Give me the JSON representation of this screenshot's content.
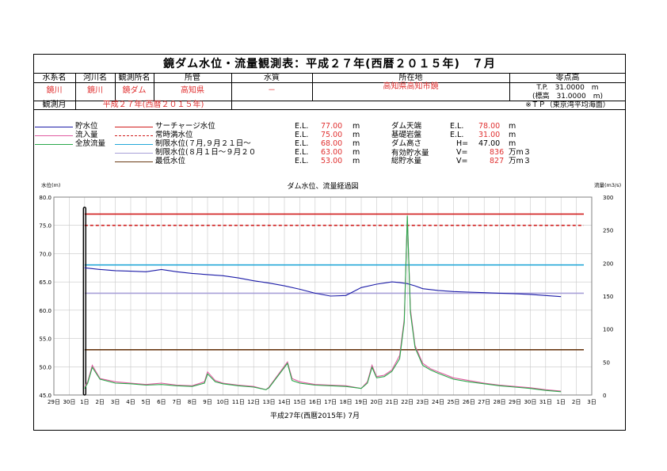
{
  "title": "鏡ダム水位・流量観測表：平成２７年(西暦２０１５年)　７月",
  "header": {
    "labels": [
      "水系名",
      "河川名",
      "観測所名",
      "所管",
      "水質",
      "所在地",
      "零点高"
    ],
    "values": [
      "鏡川",
      "鏡川",
      "鏡ダム",
      "高知県",
      "－",
      "高知県高知市鏡"
    ],
    "datum_1": "T.P.　31.0000　m",
    "datum_2": "(標高　31.0000　m)",
    "period_label": "観測月",
    "period_value": "平成２７年(西暦２０１５年)",
    "tp_note": "※ＴＰ（東京湾平均海面）"
  },
  "legend_left": [
    {
      "label": "貯水位",
      "color": "#1c1ca8"
    },
    {
      "label": "流入量",
      "color": "#e05aa0"
    },
    {
      "label": "全放流量",
      "color": "#2aa84a"
    }
  ],
  "levels": [
    {
      "label": "サーチャージ水位",
      "el": "E.L.",
      "value": "77.00",
      "unit": "m",
      "color": "#d01c1c",
      "dash": false
    },
    {
      "label": "常時満水位",
      "el": "E.L.",
      "value": "75.00",
      "unit": "m",
      "color": "#d01c1c",
      "dash": true
    },
    {
      "label": "制限水位(７月,９月２１日～",
      "el": "E.L.",
      "value": "68.00",
      "unit": "m",
      "color": "#24a8d8",
      "dash": false
    },
    {
      "label": "制限水位(８月１日～９月２０",
      "el": "E.L.",
      "value": "63.00",
      "unit": "m",
      "color": "#a8a0d8",
      "dash": false
    },
    {
      "label": "最低水位",
      "el": "E.L.",
      "value": "53.00",
      "unit": "m",
      "color": "#6a3a14",
      "dash": false
    }
  ],
  "specs": [
    {
      "label": "ダム天端",
      "el": "E.L.",
      "value": "78.00",
      "unit": "m"
    },
    {
      "label": "基礎岩盤",
      "el": "E.L.",
      "value": "31.00",
      "unit": "m"
    },
    {
      "label": "ダム高さ",
      "el": "H=",
      "value": "47.00",
      "unit": "m"
    },
    {
      "label": "有効貯水量",
      "el": "V=",
      "value": "836",
      "unit": "万m３"
    },
    {
      "label": "総貯水量",
      "el": "V=",
      "value": "827",
      "unit": "万m３"
    }
  ],
  "chart_data": {
    "type": "line",
    "title": "ダム水位、流量経過図",
    "ylabel_left": "水位(m)",
    "ylabel_right": "流量(m3/s)",
    "xlabel": "平成27年(西暦2015年) 7月",
    "ylim_left": [
      45.0,
      80.0
    ],
    "ylim_right": [
      0,
      300
    ],
    "yticks_left": [
      "45.0",
      "50.0",
      "55.0",
      "60.0",
      "65.0",
      "70.0",
      "75.0",
      "80.0"
    ],
    "yticks_right": [
      "0",
      "50",
      "100",
      "150",
      "200",
      "250",
      "300"
    ],
    "x_tick_labels": [
      "29日",
      "30日",
      "1日",
      "2日",
      "3日",
      "4日",
      "5日",
      "6日",
      "7日",
      "8日",
      "9日",
      "10日",
      "11日",
      "12日",
      "13日",
      "14日",
      "15日",
      "16日",
      "17日",
      "18日",
      "19日",
      "20日",
      "21日",
      "22日",
      "23日",
      "24日",
      "25日",
      "26日",
      "27日",
      "28日",
      "29日",
      "30日",
      "31日",
      "1日",
      "2日",
      "3日"
    ],
    "x_range_days": [
      -1,
      34
    ],
    "grid": true,
    "reference_lines": [
      {
        "name": "サーチャージ水位",
        "y": 77.0,
        "color": "#d01c1c",
        "dash": false
      },
      {
        "name": "常時満水位",
        "y": 75.0,
        "color": "#d01c1c",
        "dash": true
      },
      {
        "name": "制限水位(７月,９月２１日～",
        "y": 68.0,
        "color": "#24a8d8",
        "dash": false
      },
      {
        "name": "制限水位(８月１日～９月２０",
        "y": 63.0,
        "color": "#a8a0d8",
        "dash": false
      },
      {
        "name": "最低水位",
        "y": 53.0,
        "color": "#6a3a14",
        "dash": false
      }
    ],
    "series": [
      {
        "name": "貯水位",
        "axis": "left",
        "color": "#1c1ca8",
        "x": [
          1,
          2,
          3,
          4,
          5,
          6,
          7,
          8,
          9,
          10,
          11,
          12,
          13,
          14,
          15,
          16,
          17,
          18,
          19,
          20,
          21,
          21.5,
          22,
          22.5,
          23,
          24,
          25,
          26,
          27,
          28,
          29,
          30,
          31,
          32
        ],
        "y": [
          67.5,
          67.2,
          67.0,
          66.9,
          66.8,
          67.2,
          66.8,
          66.5,
          66.3,
          66.1,
          65.7,
          65.2,
          64.8,
          64.3,
          63.7,
          63.0,
          62.5,
          62.6,
          64.0,
          64.6,
          65.0,
          64.9,
          64.7,
          64.3,
          63.8,
          63.5,
          63.3,
          63.2,
          63.1,
          63.0,
          62.9,
          62.8,
          62.6,
          62.4
        ]
      },
      {
        "name": "流入量",
        "axis": "right",
        "color": "#e05aa0",
        "x": [
          1,
          1.2,
          1.5,
          2,
          3,
          4,
          5,
          6,
          7,
          8,
          8.8,
          9,
          9.5,
          10,
          11,
          12,
          12.8,
          13,
          14.2,
          14.5,
          15,
          16,
          17,
          18,
          19,
          19.4,
          19.7,
          20,
          20.5,
          21,
          21.5,
          21.8,
          22,
          22.2,
          22.5,
          23,
          23.5,
          24,
          25,
          26,
          27,
          28,
          29,
          30,
          31,
          32
        ],
        "y": [
          12,
          20,
          45,
          25,
          20,
          18,
          16,
          18,
          15,
          14,
          20,
          35,
          22,
          18,
          15,
          13,
          8,
          12,
          50,
          25,
          20,
          16,
          15,
          14,
          10,
          20,
          45,
          28,
          30,
          38,
          60,
          115,
          270,
          130,
          75,
          48,
          40,
          35,
          26,
          22,
          18,
          15,
          13,
          11,
          8,
          6
        ]
      },
      {
        "name": "全放流量",
        "axis": "right",
        "color": "#2aa84a",
        "x": [
          1,
          1.2,
          1.5,
          2,
          3,
          4,
          5,
          6,
          7,
          8,
          8.8,
          9,
          9.5,
          10,
          11,
          12,
          12.8,
          13,
          14.2,
          14.5,
          15,
          16,
          17,
          18,
          19,
          19.4,
          19.7,
          20,
          20.5,
          21,
          21.5,
          21.8,
          22,
          22.2,
          22.5,
          23,
          23.5,
          24,
          25,
          26,
          27,
          28,
          29,
          30,
          31,
          32
        ],
        "y": [
          10,
          18,
          42,
          24,
          18,
          17,
          15,
          16,
          14,
          13,
          18,
          32,
          20,
          17,
          14,
          12,
          8,
          11,
          48,
          22,
          18,
          15,
          14,
          13,
          10,
          18,
          42,
          26,
          28,
          36,
          55,
          110,
          272,
          125,
          72,
          45,
          38,
          33,
          24,
          20,
          17,
          14,
          12,
          10,
          7,
          5
        ]
      }
    ]
  }
}
